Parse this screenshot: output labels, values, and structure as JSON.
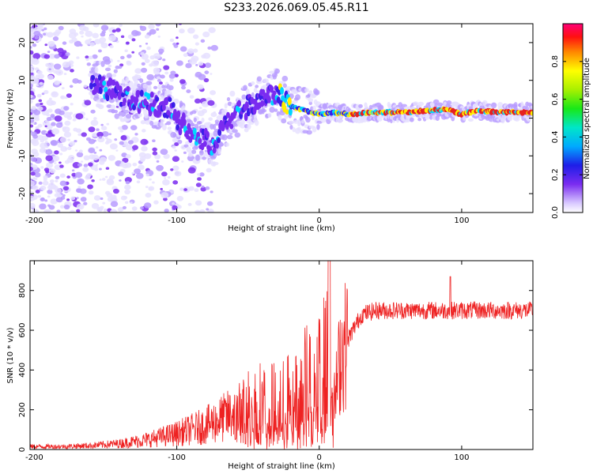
{
  "title": "S233.2026.069.05.45.R11",
  "chart_data": [
    {
      "type": "heatmap",
      "xlabel": "Height of straight line (km)",
      "ylabel": "Frequency (Hz)",
      "xlim": [
        -203,
        150
      ],
      "ylim": [
        -25,
        25
      ],
      "xticks": [
        -200,
        -100,
        0,
        100
      ],
      "yticks": [
        -20,
        -10,
        0,
        10,
        20
      ],
      "colorbar": {
        "label": "Normalized spectral amplitude",
        "range": [
          0,
          1
        ],
        "ticks": [
          "0.0",
          "0.2",
          "0.4",
          "0.6",
          "0.8"
        ]
      },
      "ridge": {
        "description": "dominant frequency track",
        "x": [
          -155,
          -140,
          -120,
          -105,
          -98,
          -90,
          -80,
          -75,
          -68,
          -60,
          -50,
          -40,
          -30,
          -20,
          -10,
          0,
          10,
          20,
          40,
          60,
          80,
          90,
          100,
          110,
          130,
          150
        ],
        "y": [
          9,
          6,
          4,
          3,
          -1,
          -4,
          -6,
          -8,
          -3,
          1,
          3,
          5,
          7,
          3,
          2,
          1,
          1.5,
          1,
          1.5,
          1.5,
          2,
          2.5,
          1,
          2,
          1.5,
          1.5
        ]
      },
      "colors": [
        "#e6e0ff",
        "#b89cff",
        "#7a2cf0",
        "#3a1ee8",
        "#00d6ff",
        "#ffee00",
        "#e62020"
      ]
    },
    {
      "type": "line",
      "xlabel": "Height of straight line (km)",
      "ylabel": "SNR (10 * v/v)",
      "xlim": [
        -203,
        150
      ],
      "ylim": [
        0,
        950
      ],
      "xticks": [
        -200,
        -100,
        0,
        100
      ],
      "yticks": [
        0,
        200,
        400,
        600,
        800
      ],
      "series": [
        {
          "name": "SNR",
          "color": "#ee2222",
          "x": [
            -203,
            -180,
            -160,
            -140,
            -120,
            -100,
            -80,
            -60,
            -50,
            -40,
            -30,
            -20,
            -10,
            0,
            5,
            8,
            10,
            15,
            20,
            25,
            30,
            40,
            60,
            80,
            100,
            120,
            150
          ],
          "y": [
            15,
            15,
            20,
            30,
            50,
            80,
            120,
            180,
            250,
            280,
            260,
            300,
            380,
            450,
            500,
            560,
            200,
            480,
            550,
            620,
            680,
            700,
            700,
            700,
            700,
            700,
            700
          ]
        }
      ]
    }
  ]
}
